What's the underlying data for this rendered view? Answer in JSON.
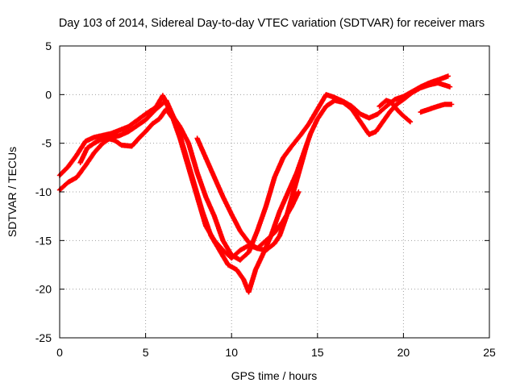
{
  "chart_data": {
    "type": "scatter",
    "title": "Day 103 of 2014, Sidereal Day-to-day VTEC variation (SDTVAR) for receiver mars",
    "xlabel": "GPS time / hours",
    "ylabel": "SDTVAR / TECUs",
    "xlim": [
      0,
      25
    ],
    "ylim": [
      -25,
      5
    ],
    "x_ticks": [
      0,
      5,
      10,
      15,
      20,
      25
    ],
    "y_ticks": [
      -25,
      -20,
      -15,
      -10,
      -5,
      0,
      5
    ],
    "grid": true,
    "marker": "plus",
    "colors": {
      "series": "#ff0000",
      "grid": "#a0a0a0",
      "axis": "#000000"
    },
    "series": [
      {
        "points": [
          [
            0.0,
            -8.3
          ],
          [
            0.5,
            -7.4
          ],
          [
            1.0,
            -6.2
          ],
          [
            1.5,
            -4.8
          ],
          [
            2.0,
            -4.4
          ],
          [
            3.0,
            -4.0
          ],
          [
            4.0,
            -3.3
          ],
          [
            5.0,
            -2.0
          ],
          [
            5.6,
            -1.3
          ],
          [
            6.0,
            -0.1
          ],
          [
            6.5,
            -2.0
          ],
          [
            7.0,
            -3.3
          ],
          [
            7.5,
            -5.0
          ],
          [
            8.0,
            -8.0
          ],
          [
            8.5,
            -10.5
          ],
          [
            9.0,
            -12.5
          ],
          [
            9.5,
            -15.0
          ],
          [
            10.0,
            -16.5
          ],
          [
            10.5,
            -17.0
          ],
          [
            11.0,
            -16.2
          ],
          [
            11.5,
            -14.0
          ],
          [
            12.0,
            -11.5
          ],
          [
            12.5,
            -8.5
          ],
          [
            13.0,
            -6.5
          ],
          [
            13.5,
            -5.3
          ],
          [
            14.0,
            -4.2
          ],
          [
            14.5,
            -3.0
          ],
          [
            15.0,
            -1.5
          ],
          [
            15.5,
            0.0
          ],
          [
            16.0,
            -0.3
          ],
          [
            16.5,
            -0.7
          ],
          [
            17.0,
            -1.2
          ],
          [
            17.5,
            -2.0
          ],
          [
            18.0,
            -2.4
          ],
          [
            18.5,
            -2.0
          ],
          [
            19.0,
            -1.2
          ],
          [
            19.5,
            -0.5
          ],
          [
            20.0,
            -0.2
          ],
          [
            20.5,
            0.3
          ],
          [
            21.0,
            0.8
          ],
          [
            21.5,
            1.2
          ],
          [
            22.0,
            1.5
          ],
          [
            22.6,
            1.9
          ]
        ]
      },
      {
        "points": [
          [
            0.0,
            -9.8
          ],
          [
            0.5,
            -9.0
          ],
          [
            1.0,
            -8.5
          ],
          [
            1.5,
            -7.3
          ],
          [
            2.0,
            -6.0
          ],
          [
            2.5,
            -5.0
          ],
          [
            3.0,
            -4.4
          ],
          [
            3.5,
            -4.2
          ],
          [
            4.0,
            -3.8
          ],
          [
            4.5,
            -3.2
          ],
          [
            5.0,
            -2.6
          ],
          [
            5.6,
            -1.5
          ],
          [
            6.2,
            -0.6
          ],
          [
            6.8,
            -3.0
          ],
          [
            7.3,
            -6.0
          ],
          [
            7.8,
            -9.0
          ],
          [
            8.3,
            -12.0
          ],
          [
            8.8,
            -14.5
          ],
          [
            9.3,
            -16.0
          ],
          [
            9.8,
            -17.5
          ],
          [
            10.3,
            -18.0
          ],
          [
            10.7,
            -19.0
          ],
          [
            11.0,
            -20.3
          ],
          [
            11.4,
            -18.0
          ],
          [
            11.8,
            -16.5
          ],
          [
            12.3,
            -14.5
          ],
          [
            12.8,
            -12.0
          ],
          [
            13.3,
            -10.0
          ],
          [
            13.8,
            -8.0
          ],
          [
            14.2,
            -6.0
          ],
          [
            14.6,
            -4.0
          ],
          [
            15.0,
            -2.5
          ],
          [
            15.5,
            -1.2
          ],
          [
            16.0,
            -0.6
          ],
          [
            16.5,
            -0.8
          ],
          [
            17.0,
            -1.5
          ],
          [
            17.5,
            -2.8
          ],
          [
            18.0,
            -4.1
          ],
          [
            18.4,
            -3.8
          ],
          [
            18.8,
            -2.8
          ],
          [
            19.2,
            -1.8
          ],
          [
            19.6,
            -1.0
          ],
          [
            20.0,
            -0.5
          ],
          [
            20.5,
            0.2
          ],
          [
            21.0,
            0.7
          ],
          [
            21.5,
            1.0
          ],
          [
            22.0,
            1.2
          ],
          [
            22.7,
            0.8
          ]
        ]
      },
      {
        "points": [
          [
            1.2,
            -7.0
          ],
          [
            1.6,
            -5.5
          ],
          [
            2.0,
            -5.0
          ],
          [
            2.4,
            -4.6
          ],
          [
            2.8,
            -4.5
          ],
          [
            3.2,
            -4.7
          ],
          [
            3.6,
            -5.2
          ],
          [
            4.2,
            -5.3
          ],
          [
            4.6,
            -4.5
          ],
          [
            5.0,
            -3.8
          ],
          [
            5.4,
            -3.0
          ],
          [
            5.8,
            -2.5
          ],
          [
            6.2,
            -1.5
          ],
          [
            6.6,
            -2.5
          ],
          [
            7.0,
            -4.5
          ],
          [
            7.5,
            -7.5
          ],
          [
            8.0,
            -10.5
          ],
          [
            8.5,
            -13.5
          ],
          [
            9.0,
            -15.0
          ],
          [
            9.5,
            -16.0
          ],
          [
            10.0,
            -16.8
          ],
          [
            10.5,
            -16.0
          ],
          [
            11.0,
            -15.5
          ],
          [
            11.5,
            -15.8
          ],
          [
            12.0,
            -15.0
          ],
          [
            12.5,
            -14.2
          ],
          [
            13.0,
            -13.0
          ],
          [
            13.5,
            -11.5
          ],
          [
            13.9,
            -10.0
          ]
        ]
      },
      {
        "points": [
          [
            8.0,
            -4.5
          ],
          [
            8.5,
            -6.5
          ],
          [
            9.0,
            -8.5
          ],
          [
            9.5,
            -10.5
          ],
          [
            10.0,
            -12.3
          ],
          [
            10.5,
            -14.0
          ],
          [
            11.0,
            -15.2
          ],
          [
            11.5,
            -15.8
          ],
          [
            12.0,
            -16.0
          ],
          [
            12.5,
            -15.3
          ],
          [
            12.8,
            -14.5
          ],
          [
            13.2,
            -12.5
          ],
          [
            13.6,
            -10.0
          ],
          [
            14.0,
            -7.5
          ],
          [
            14.4,
            -5.0
          ]
        ]
      },
      {
        "points": [
          [
            18.6,
            -1.2
          ],
          [
            19.0,
            -0.6
          ],
          [
            19.3,
            -0.8
          ],
          [
            19.6,
            -1.5
          ],
          [
            20.0,
            -2.2
          ],
          [
            20.4,
            -2.8
          ]
        ]
      },
      {
        "points": [
          [
            21.0,
            -1.8
          ],
          [
            21.5,
            -1.5
          ],
          [
            22.0,
            -1.2
          ],
          [
            22.4,
            -1.0
          ],
          [
            22.8,
            -1.0
          ]
        ]
      }
    ]
  }
}
